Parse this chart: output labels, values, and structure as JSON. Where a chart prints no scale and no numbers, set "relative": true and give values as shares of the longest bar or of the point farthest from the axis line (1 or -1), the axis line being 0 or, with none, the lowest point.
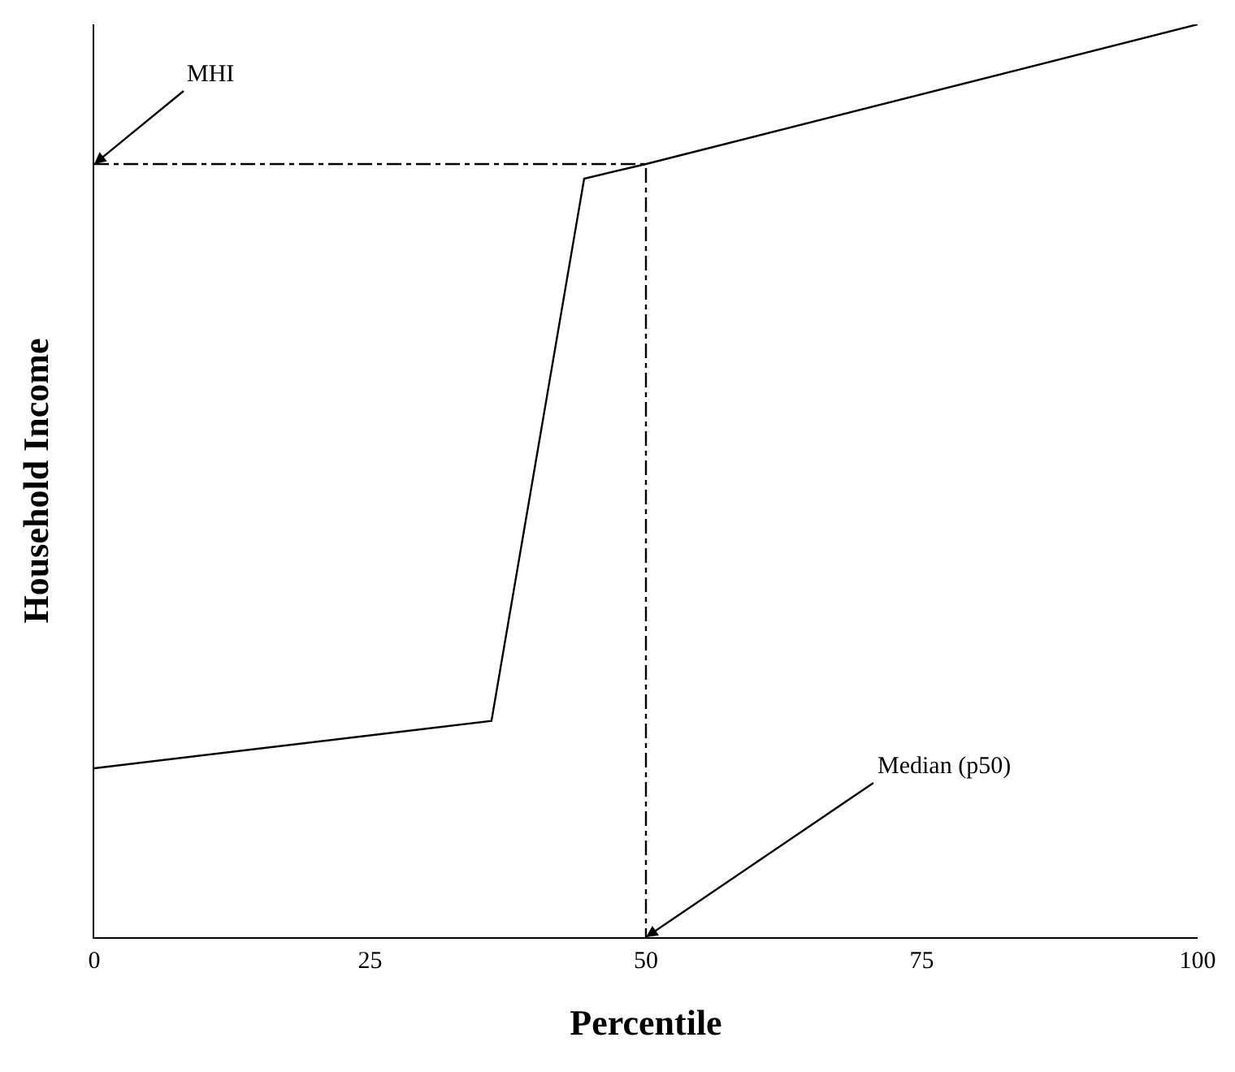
{
  "chart_data": {
    "type": "line",
    "relative": true,
    "xlabel": "Percentile",
    "ylabel": "Household Income",
    "xlim": [
      0,
      100
    ],
    "xticks": [
      0,
      25,
      50,
      75,
      100
    ],
    "marker": "none",
    "series": [
      {
        "color": "#000000",
        "line_style": "solid",
        "x": [
          0,
          36,
          44.4,
          50,
          100
        ],
        "values": [
          0.185,
          0.237,
          0.831,
          0.847,
          1.0
        ]
      },
      {
        "color": "#000000",
        "line_style": "dotted",
        "x": [
          0,
          50,
          50
        ],
        "values": [
          0.847,
          0.847,
          0
        ]
      }
    ],
    "annotations": [
      {
        "text": "MHI",
        "x": 0,
        "y": 0.847
      },
      {
        "text": "Median (p50)",
        "x": 50,
        "y": 0
      }
    ]
  }
}
